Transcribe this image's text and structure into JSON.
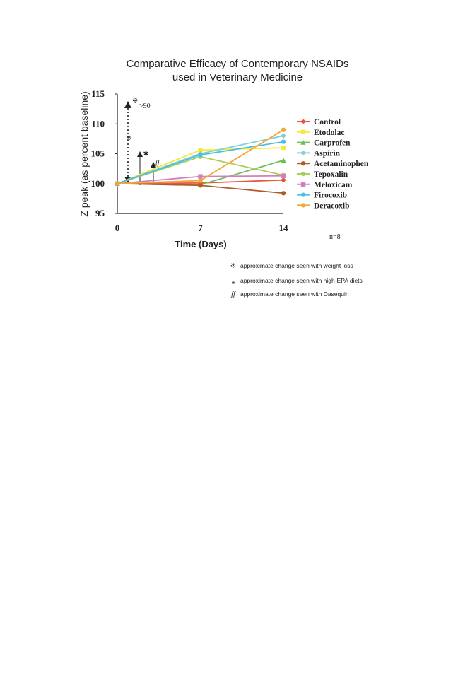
{
  "chart_data": {
    "type": "line",
    "title_lines": [
      "Comparative Efficacy of Contemporary NSAIDs",
      "used in Veterinary Medicine"
    ],
    "xlabel": "Time (Days)",
    "ylabel": "Z peak (as percent baseline)",
    "x": [
      0,
      7,
      14
    ],
    "x_tick_labels": [
      "0",
      "7",
      "14"
    ],
    "y_ticks": [
      95,
      100,
      105,
      110,
      115
    ],
    "xlim": [
      0,
      14
    ],
    "ylim": [
      95,
      115
    ],
    "sample_note": "n=8",
    "series": [
      {
        "name": "Control",
        "values": [
          100,
          100.1,
          100.6
        ],
        "color": "#e8553a",
        "marker": "diamond"
      },
      {
        "name": "Etodolac",
        "values": [
          100,
          105.6,
          106
        ],
        "color": "#f4ea3c",
        "marker": "square"
      },
      {
        "name": "Carprofen",
        "values": [
          100,
          99.8,
          103.9
        ],
        "color": "#6cbf5a",
        "marker": "triangle"
      },
      {
        "name": "Aspirin",
        "values": [
          100,
          105,
          108
        ],
        "color": "#7fcfd8",
        "marker": "diamond"
      },
      {
        "name": "Acetaminophen",
        "values": [
          100,
          99.7,
          98.4
        ],
        "color": "#b05a2a",
        "marker": "circle"
      },
      {
        "name": "Tepoxalin",
        "values": [
          100,
          104.5,
          101.4
        ],
        "color": "#a9cf5a",
        "marker": "circle"
      },
      {
        "name": "Meloxicam",
        "values": [
          100,
          101.2,
          101.3
        ],
        "color": "#d37fbf",
        "marker": "square"
      },
      {
        "name": "Firocoxib",
        "values": [
          100,
          104.8,
          107
        ],
        "color": "#4ac0e8",
        "marker": "circle"
      },
      {
        "name": "Deracoxib",
        "values": [
          100,
          100.5,
          109
        ],
        "color": "#f4a533",
        "marker": "circle"
      }
    ],
    "annotations": {
      "weight_loss_label": ">90",
      "weight_loss_symbol": "※",
      "epa_symbol": "*",
      "dasequin_symbol": "ʃʃ"
    },
    "footnotes": [
      {
        "symbol": "※",
        "text": "approximate change seen with weight loss"
      },
      {
        "symbol": "*",
        "text": "approximate change seen with high-EPA diets"
      },
      {
        "symbol": "ʃʃ",
        "text": "approximate change seen with Dasequin"
      }
    ]
  }
}
